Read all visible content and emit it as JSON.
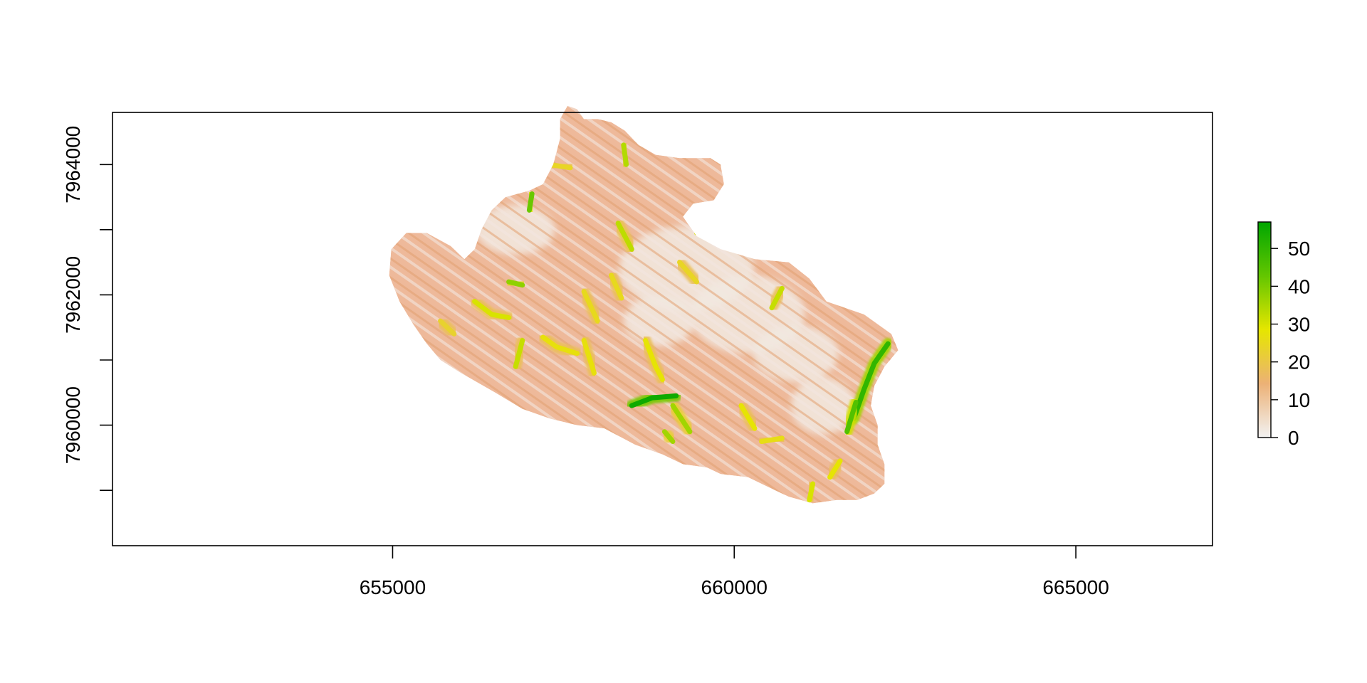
{
  "chart_data": {
    "type": "heatmap",
    "title": "",
    "xlabel": "",
    "ylabel": "",
    "xlim": [
      650900,
      667000
    ],
    "ylim": [
      7958150,
      7964800
    ],
    "x_ticks": [
      {
        "value": 655000,
        "label": "655000"
      },
      {
        "value": 660000,
        "label": "660000"
      },
      {
        "value": 665000,
        "label": "665000"
      }
    ],
    "y_ticks": [
      {
        "value": 7959000,
        "label": ""
      },
      {
        "value": 7960000,
        "label": "7960000"
      },
      {
        "value": 7961000,
        "label": ""
      },
      {
        "value": 7962000,
        "label": "7962000"
      },
      {
        "value": 7963000,
        "label": ""
      },
      {
        "value": 7964000,
        "label": "7964000"
      },
      {
        "value": 7965000,
        "label": ""
      }
    ],
    "grid": false,
    "value_range": [
      0,
      57
    ],
    "legend": {
      "placement": "right",
      "ticks": [
        {
          "value": 0,
          "label": "0"
        },
        {
          "value": 10,
          "label": "10"
        },
        {
          "value": 20,
          "label": "20"
        },
        {
          "value": 30,
          "label": "30"
        },
        {
          "value": 40,
          "label": "40"
        },
        {
          "value": 50,
          "label": "50"
        }
      ]
    },
    "color_ramp": [
      "#f2f2f2",
      "#ecb176",
      "#e6e600",
      "#63c600",
      "#00a600"
    ],
    "region_outline": [
      [
        657560,
        7964900
      ],
      [
        657700,
        7964850
      ],
      [
        657800,
        7964700
      ],
      [
        658000,
        7964700
      ],
      [
        658200,
        7964650
      ],
      [
        658400,
        7964520
      ],
      [
        658600,
        7964300
      ],
      [
        658850,
        7964150
      ],
      [
        659200,
        7964100
      ],
      [
        659650,
        7964100
      ],
      [
        659800,
        7964000
      ],
      [
        659850,
        7963700
      ],
      [
        659700,
        7963450
      ],
      [
        659400,
        7963400
      ],
      [
        659250,
        7963200
      ],
      [
        659450,
        7962900
      ],
      [
        659800,
        7962700
      ],
      [
        660300,
        7962550
      ],
      [
        660800,
        7962500
      ],
      [
        661100,
        7962250
      ],
      [
        661350,
        7961900
      ],
      [
        661900,
        7961700
      ],
      [
        662300,
        7961400
      ],
      [
        662400,
        7961150
      ],
      [
        662200,
        7960900
      ],
      [
        662050,
        7960600
      ],
      [
        662000,
        7960300
      ],
      [
        662100,
        7960000
      ],
      [
        662100,
        7959700
      ],
      [
        662200,
        7959400
      ],
      [
        662200,
        7959100
      ],
      [
        662050,
        7958950
      ],
      [
        661800,
        7958850
      ],
      [
        661500,
        7958850
      ],
      [
        661150,
        7958800
      ],
      [
        660800,
        7958900
      ],
      [
        660500,
        7959050
      ],
      [
        660200,
        7959200
      ],
      [
        659800,
        7959250
      ],
      [
        659600,
        7959350
      ],
      [
        659250,
        7959400
      ],
      [
        658950,
        7959550
      ],
      [
        658550,
        7959700
      ],
      [
        658100,
        7959950
      ],
      [
        657700,
        7960000
      ],
      [
        657300,
        7960100
      ],
      [
        656900,
        7960250
      ],
      [
        656500,
        7960500
      ],
      [
        656000,
        7960800
      ],
      [
        655700,
        7961000
      ],
      [
        655500,
        7961250
      ],
      [
        655300,
        7961550
      ],
      [
        655100,
        7961900
      ],
      [
        654950,
        7962300
      ],
      [
        654980,
        7962700
      ],
      [
        655200,
        7962950
      ],
      [
        655500,
        7962950
      ],
      [
        655850,
        7962750
      ],
      [
        656050,
        7962550
      ],
      [
        656200,
        7962700
      ],
      [
        656300,
        7963000
      ],
      [
        656450,
        7963300
      ],
      [
        656650,
        7963500
      ],
      [
        657000,
        7963600
      ],
      [
        657200,
        7963700
      ],
      [
        657350,
        7964000
      ],
      [
        657450,
        7964400
      ],
      [
        657450,
        7964700
      ]
    ],
    "high_value_features": [
      {
        "value": 55,
        "points": [
          [
            658500,
            7960300
          ],
          [
            658800,
            7960420
          ],
          [
            659150,
            7960450
          ]
        ]
      },
      {
        "value": 50,
        "points": [
          [
            661750,
            7960100
          ],
          [
            661900,
            7960550
          ],
          [
            662050,
            7960950
          ],
          [
            662250,
            7961250
          ]
        ]
      },
      {
        "value": 45,
        "points": [
          [
            661650,
            7959900
          ],
          [
            661780,
            7960350
          ]
        ]
      },
      {
        "value": 42,
        "points": [
          [
            657040,
            7963550
          ],
          [
            657000,
            7963300
          ]
        ]
      },
      {
        "value": 38,
        "points": [
          [
            656700,
            7962200
          ],
          [
            656900,
            7962150
          ]
        ]
      },
      {
        "value": 36,
        "points": [
          [
            659100,
            7960300
          ],
          [
            659350,
            7959900
          ]
        ]
      },
      {
        "value": 36,
        "points": [
          [
            658980,
            7959900
          ],
          [
            659100,
            7959750
          ]
        ]
      },
      {
        "value": 34,
        "points": [
          [
            658380,
            7964300
          ],
          [
            658420,
            7964000
          ]
        ]
      },
      {
        "value": 33,
        "points": [
          [
            658300,
            7963100
          ],
          [
            658400,
            7962900
          ],
          [
            658500,
            7962700
          ]
        ]
      },
      {
        "value": 32,
        "points": [
          [
            656900,
            7961300
          ],
          [
            656800,
            7960900
          ]
        ]
      },
      {
        "value": 32,
        "points": [
          [
            660550,
            7961800
          ],
          [
            660700,
            7962100
          ]
        ]
      },
      {
        "value": 30,
        "points": [
          [
            656200,
            7961900
          ],
          [
            656450,
            7961700
          ],
          [
            656700,
            7961650
          ]
        ]
      },
      {
        "value": 30,
        "points": [
          [
            659700,
            7963100
          ],
          [
            659450,
            7962950
          ]
        ]
      },
      {
        "value": 30,
        "points": [
          [
            661150,
            7959100
          ],
          [
            661100,
            7958850
          ]
        ]
      },
      {
        "value": 28,
        "points": [
          [
            658700,
            7961300
          ],
          [
            658850,
            7960900
          ],
          [
            658950,
            7960700
          ]
        ]
      },
      {
        "value": 28,
        "points": [
          [
            660100,
            7960300
          ],
          [
            660300,
            7959950
          ]
        ]
      },
      {
        "value": 28,
        "points": [
          [
            661400,
            7959200
          ],
          [
            661550,
            7959450
          ]
        ]
      },
      {
        "value": 27,
        "points": [
          [
            657200,
            7961350
          ],
          [
            657400,
            7961200
          ],
          [
            657700,
            7961100
          ]
        ]
      },
      {
        "value": 27,
        "points": [
          [
            657800,
            7961300
          ],
          [
            657950,
            7960800
          ]
        ]
      },
      {
        "value": 26,
        "points": [
          [
            656100,
            7963300
          ],
          [
            656250,
            7963000
          ]
        ]
      },
      {
        "value": 26,
        "points": [
          [
            660400,
            7959750
          ],
          [
            660700,
            7959800
          ]
        ]
      },
      {
        "value": 25,
        "points": [
          [
            657800,
            7962050
          ],
          [
            658000,
            7961600
          ]
        ]
      },
      {
        "value": 25,
        "points": [
          [
            658200,
            7962300
          ],
          [
            658350,
            7961950
          ]
        ]
      },
      {
        "value": 24,
        "points": [
          [
            659200,
            7962500
          ],
          [
            659450,
            7962200
          ]
        ]
      },
      {
        "value": 24,
        "points": [
          [
            657300,
            7964000
          ],
          [
            657600,
            7963950
          ]
        ]
      },
      {
        "value": 23,
        "points": [
          [
            655700,
            7961600
          ],
          [
            655900,
            7961400
          ]
        ]
      }
    ]
  }
}
